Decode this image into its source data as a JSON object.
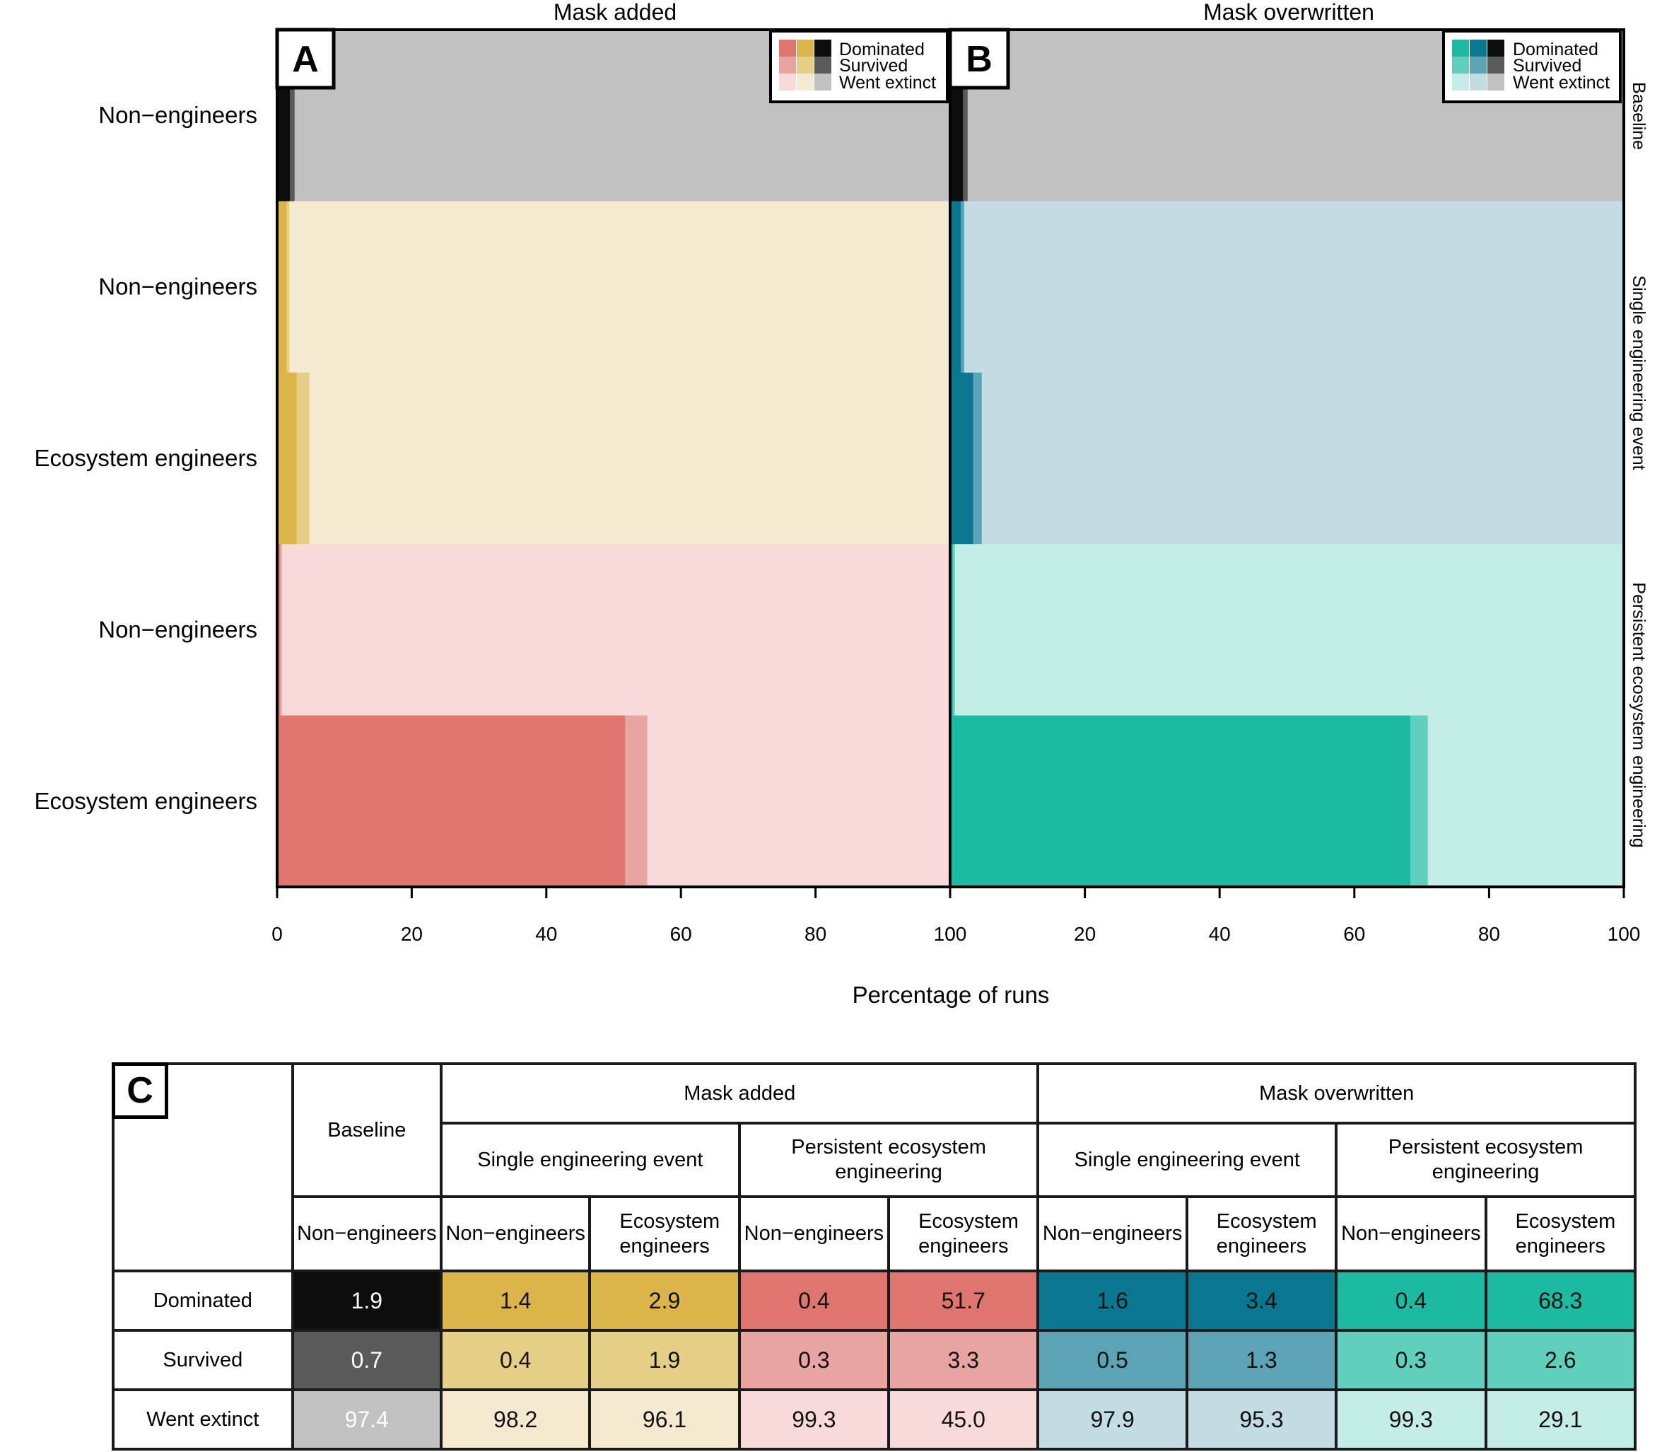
{
  "colors": {
    "baseline": [
      "#0d0d0d",
      "#5a5a5a",
      "#c1c1c1"
    ],
    "added_single": [
      "#dcb54a",
      "#e5cf87",
      "#f5ead0"
    ],
    "added_persistent": [
      "#de756e",
      "#e8a4a0",
      "#f7dad9"
    ],
    "over_single": [
      "#0a7790",
      "#5ba3b5",
      "#c4dde4"
    ],
    "over_persistent": [
      "#1bbaa1",
      "#60d0bd",
      "#c5ede8"
    ]
  },
  "panels": {
    "a": {
      "letter": "A",
      "title": "Mask added"
    },
    "b": {
      "letter": "B",
      "title": "Mask overwritten"
    },
    "c": {
      "letter": "C"
    }
  },
  "legend": [
    "Dominated",
    "Survived",
    "Went extinct"
  ],
  "strips": [
    "Baseline",
    "Single engineering event",
    "Persistent ecosystem engineering"
  ],
  "xlabel": "Percentage of runs",
  "xticks": [
    "0",
    "20",
    "40",
    "60",
    "80",
    "100"
  ],
  "chart_data": {
    "type": "bar",
    "orientation": "horizontal",
    "stacked": true,
    "xlabel": "Percentage of runs",
    "xlim": [
      0,
      100
    ],
    "stack_order": [
      "Dominated",
      "Survived",
      "Went extinct"
    ],
    "panels": [
      {
        "panel": "A",
        "title": "Mask added",
        "rows": [
          {
            "facet": "Baseline",
            "label": "Non−engineers",
            "values": [
              1.9,
              0.7,
              97.4
            ]
          },
          {
            "facet": "Single engineering event",
            "label": "Non−engineers",
            "values": [
              1.4,
              0.4,
              98.2
            ]
          },
          {
            "facet": "Single engineering event",
            "label": "Ecosystem engineers",
            "values": [
              2.9,
              1.9,
              96.1
            ]
          },
          {
            "facet": "Persistent ecosystem engineering",
            "label": "Non−engineers",
            "values": [
              0.4,
              0.3,
              99.3
            ]
          },
          {
            "facet": "Persistent ecosystem engineering",
            "label": "Ecosystem engineers",
            "values": [
              51.7,
              3.3,
              45.0
            ]
          }
        ]
      },
      {
        "panel": "B",
        "title": "Mask overwritten",
        "rows": [
          {
            "facet": "Baseline",
            "label": "Non−engineers",
            "values": [
              1.9,
              0.7,
              97.4
            ]
          },
          {
            "facet": "Single engineering event",
            "label": "Non−engineers",
            "values": [
              1.6,
              0.5,
              97.9
            ]
          },
          {
            "facet": "Single engineering event",
            "label": "Ecosystem engineers",
            "values": [
              3.4,
              1.3,
              95.3
            ]
          },
          {
            "facet": "Persistent ecosystem engineering",
            "label": "Non−engineers",
            "values": [
              0.4,
              0.3,
              99.3
            ]
          },
          {
            "facet": "Persistent ecosystem engineering",
            "label": "Ecosystem engineers",
            "values": [
              68.3,
              2.6,
              29.1
            ]
          }
        ]
      }
    ]
  },
  "table": {
    "baseline": "Baseline",
    "mask_added": "Mask added",
    "mask_overwritten": "Mask overwritten",
    "single": "Single engineering event",
    "persistent": "Persistent ecosystem engineering",
    "non_engineers": "Non−engineers",
    "eco_engineers": "Ecosystem engineers",
    "rows": [
      {
        "label": "Dominated",
        "values": [
          "1.9",
          "1.4",
          "2.9",
          "0.4",
          "51.7",
          "1.6",
          "3.4",
          "0.4",
          "68.3"
        ]
      },
      {
        "label": "Survived",
        "values": [
          "0.7",
          "0.4",
          "1.9",
          "0.3",
          "3.3",
          "0.5",
          "1.3",
          "0.3",
          "2.6"
        ]
      },
      {
        "label": "Went extinct",
        "values": [
          "97.4",
          "98.2",
          "96.1",
          "99.3",
          "45.0",
          "97.9",
          "95.3",
          "99.3",
          "29.1"
        ]
      }
    ]
  }
}
